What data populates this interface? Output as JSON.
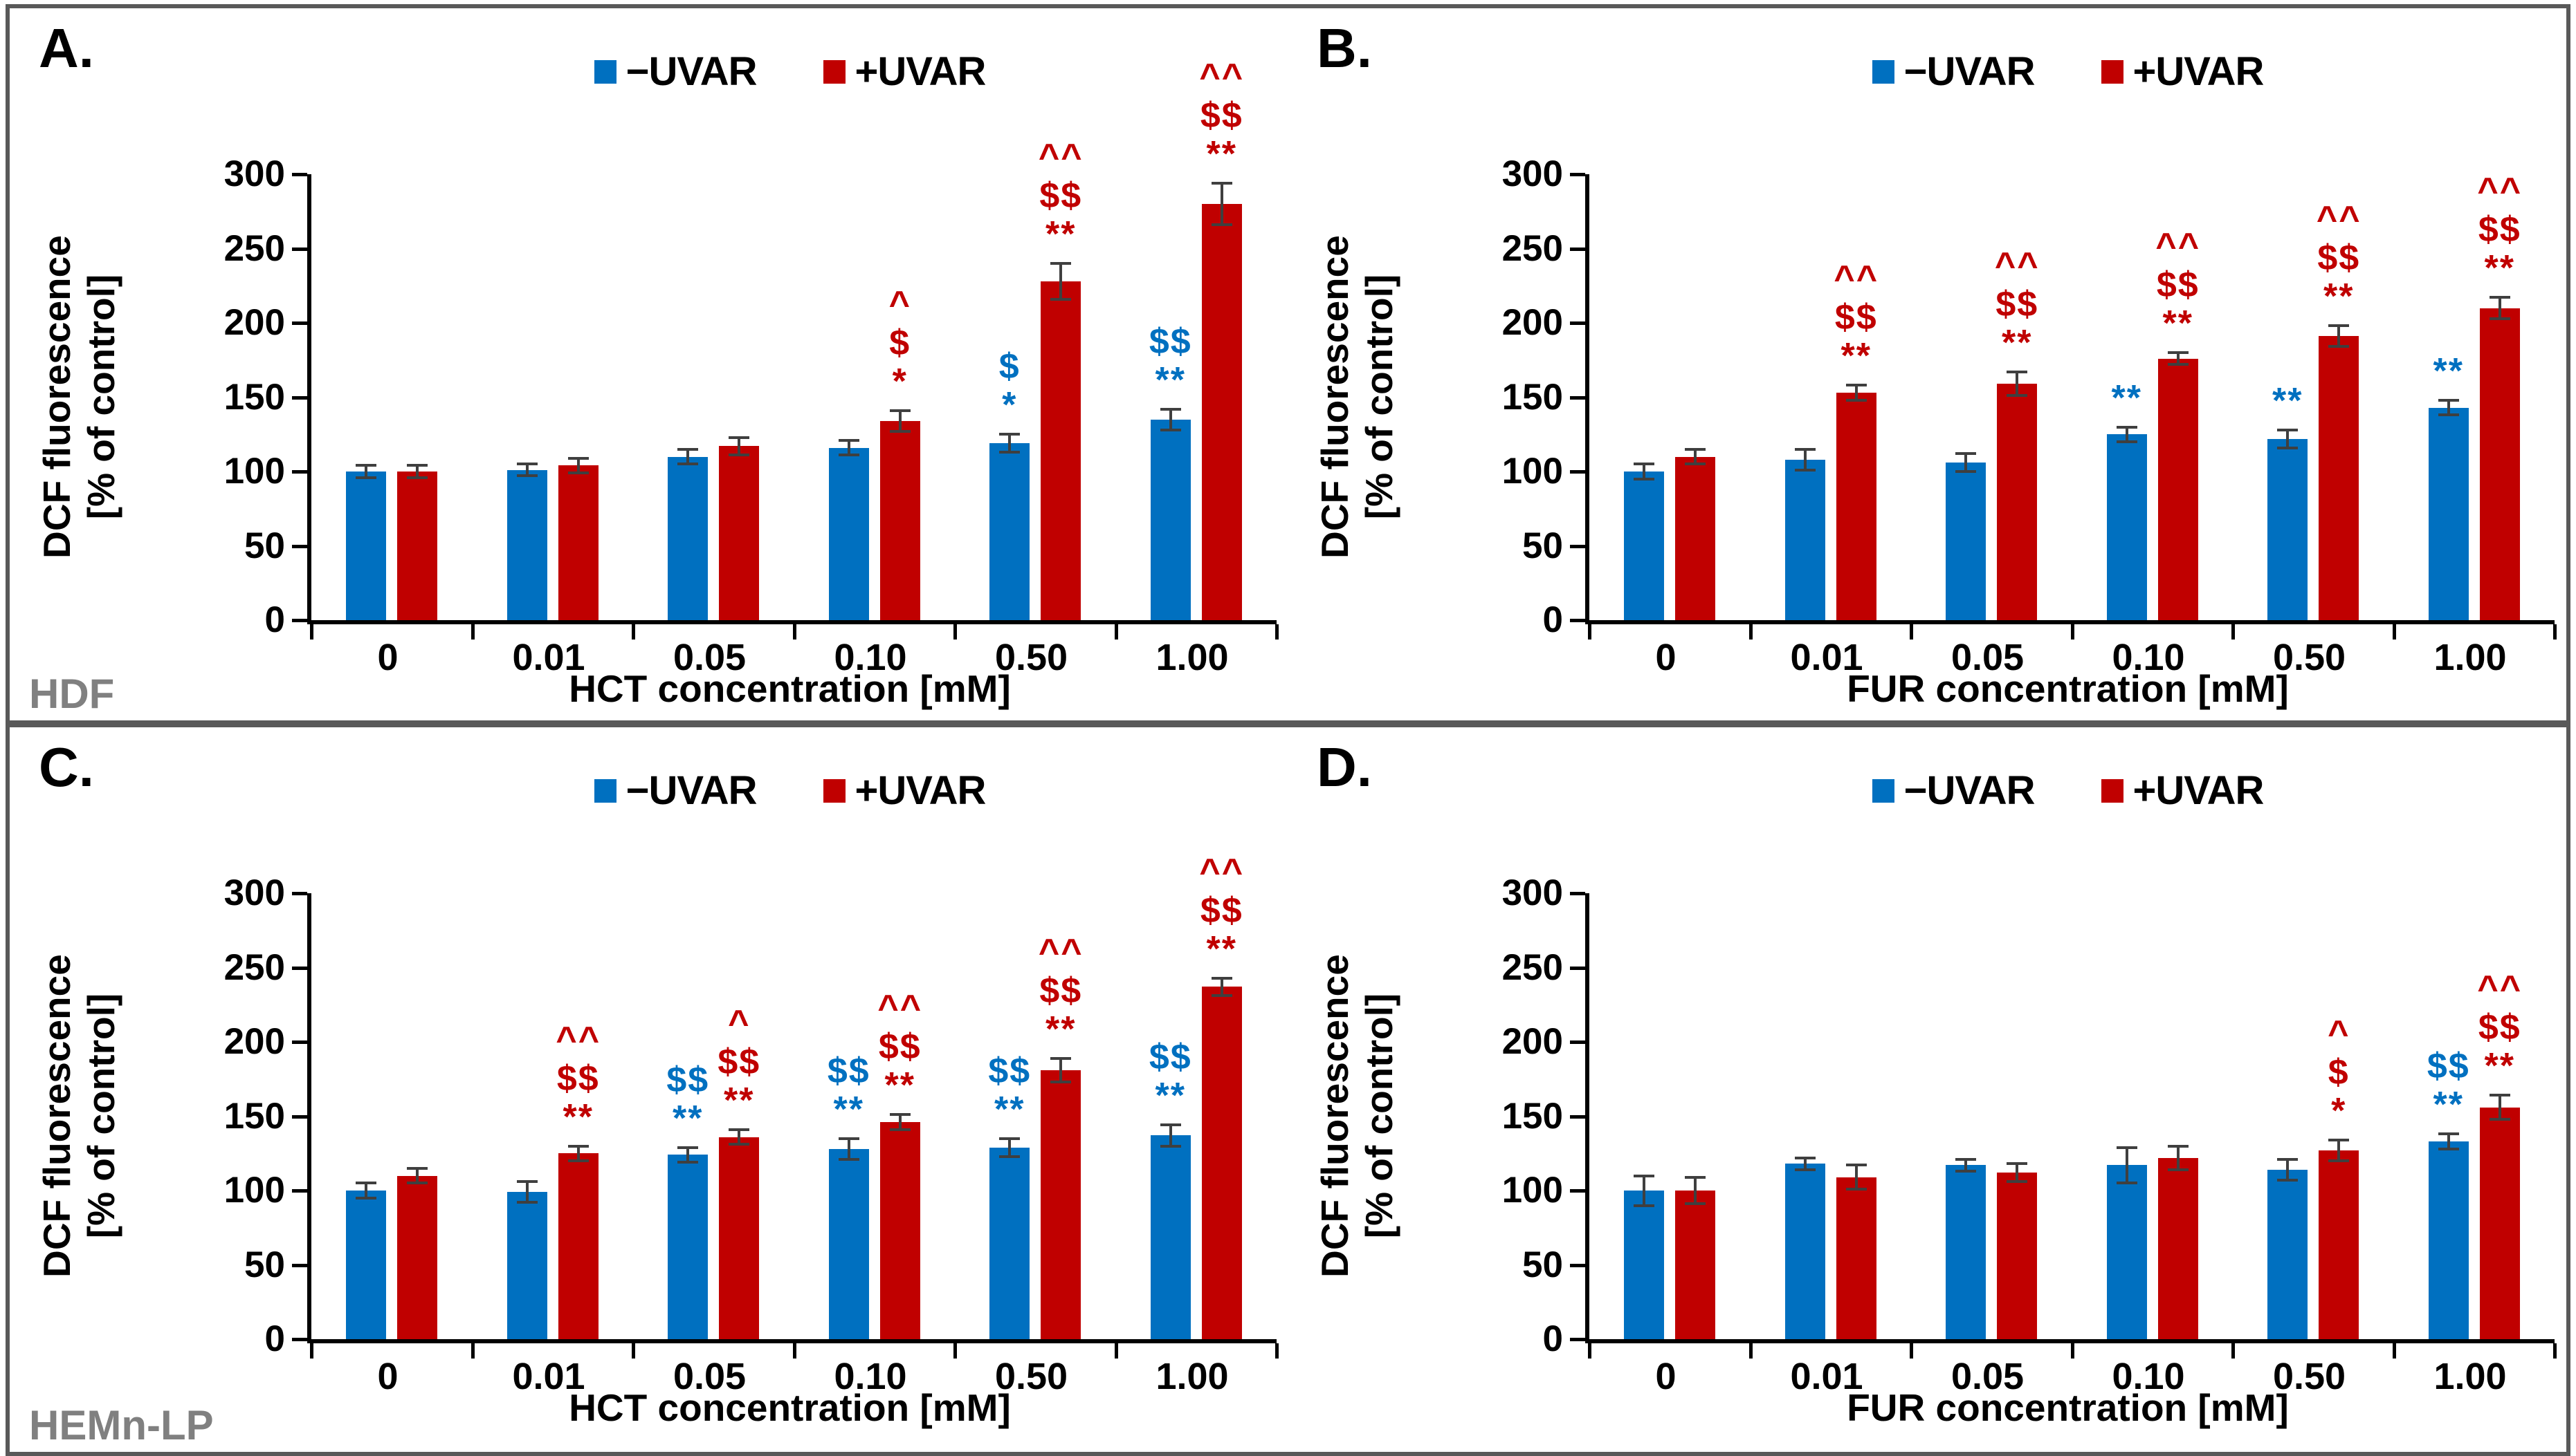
{
  "figure": {
    "legend": [
      {
        "name": "−UVAR",
        "color": "#0070C0"
      },
      {
        "name": "+UVAR",
        "color": "#C00000"
      }
    ],
    "colors": {
      "bar_blue": "#0070C0",
      "bar_red": "#C00000",
      "annotation_blue": "#0070C0",
      "annotation_red": "#C00000",
      "error_bar": "#3F3F3F",
      "box_border": "#595959",
      "axis": "#000000",
      "cell_label": "#808080"
    },
    "y_axis": {
      "label_lines": [
        "DCF fluorescence",
        "[% of control]"
      ],
      "ticks": [
        0,
        50,
        100,
        150,
        200,
        250,
        300
      ],
      "max": 300
    },
    "row_labels": [
      "HDF",
      "HEMn-LP"
    ]
  },
  "chart_data": [
    {
      "type": "bar",
      "panel": "A.",
      "cell_line": "HDF",
      "xlabel": "HCT concentration [mM]",
      "ylabel": "DCF fluorescence [% of control]",
      "ylim": [
        0,
        300
      ],
      "categories": [
        "0",
        "0.01",
        "0.05",
        "0.10",
        "0.50",
        "1.00"
      ],
      "series": [
        {
          "name": "−UVAR",
          "color": "#0070C0",
          "values": [
            100,
            101,
            110,
            116,
            119,
            135
          ],
          "errors": [
            4,
            4,
            5,
            5,
            6,
            7
          ],
          "annotations": [
            [],
            [],
            [],
            [],
            [
              "$",
              "*"
            ],
            [
              "$$",
              "**"
            ]
          ]
        },
        {
          "name": "+UVAR",
          "color": "#C00000",
          "values": [
            100,
            104,
            117,
            134,
            228,
            280
          ],
          "errors": [
            4,
            5,
            6,
            7,
            12,
            14
          ],
          "annotations": [
            [],
            [],
            [],
            [
              "^",
              "$",
              "*"
            ],
            [
              "^^",
              "$$",
              "**"
            ],
            [
              "^^",
              "$$",
              "**"
            ]
          ]
        }
      ]
    },
    {
      "type": "bar",
      "panel": "B.",
      "cell_line": "HDF",
      "xlabel": "FUR concentration [mM]",
      "ylabel": "DCF fluorescence [% of control]",
      "ylim": [
        0,
        300
      ],
      "categories": [
        "0",
        "0.01",
        "0.05",
        "0.10",
        "0.50",
        "1.00"
      ],
      "series": [
        {
          "name": "−UVAR",
          "color": "#0070C0",
          "values": [
            100,
            108,
            106,
            125,
            122,
            143
          ],
          "errors": [
            5,
            7,
            6,
            5,
            6,
            5
          ],
          "annotations": [
            [],
            [],
            [],
            [
              "**"
            ],
            [
              "**"
            ],
            [
              "**"
            ]
          ]
        },
        {
          "name": "+UVAR",
          "color": "#C00000",
          "values": [
            110,
            153,
            159,
            176,
            191,
            210
          ],
          "errors": [
            5,
            5,
            8,
            4,
            7,
            7
          ],
          "annotations": [
            [],
            [
              "^^",
              "$$",
              "**"
            ],
            [
              "^^",
              "$$",
              "**"
            ],
            [
              "^^",
              "$$",
              "**"
            ],
            [
              "^^",
              "$$",
              "**"
            ],
            [
              "^^",
              "$$",
              "**"
            ]
          ]
        }
      ]
    },
    {
      "type": "bar",
      "panel": "C.",
      "cell_line": "HEMn-LP",
      "xlabel": "HCT concentration [mM]",
      "ylabel": "DCF fluorescence [% of control]",
      "ylim": [
        0,
        300
      ],
      "categories": [
        "0",
        "0.01",
        "0.05",
        "0.10",
        "0.50",
        "1.00"
      ],
      "series": [
        {
          "name": "−UVAR",
          "color": "#0070C0",
          "values": [
            100,
            99,
            124,
            128,
            129,
            137
          ],
          "errors": [
            5,
            7,
            5,
            7,
            6,
            7
          ],
          "annotations": [
            [],
            [],
            [
              "$$",
              "**"
            ],
            [
              "$$",
              "**"
            ],
            [
              "$$",
              "**"
            ],
            [
              "$$",
              "**"
            ]
          ]
        },
        {
          "name": "+UVAR",
          "color": "#C00000",
          "values": [
            110,
            125,
            136,
            146,
            181,
            237
          ],
          "errors": [
            5,
            5,
            5,
            5,
            8,
            6
          ],
          "annotations": [
            [],
            [
              "^^",
              "$$",
              "**"
            ],
            [
              "^",
              "$$",
              "**"
            ],
            [
              "^^",
              "$$",
              "**"
            ],
            [
              "^^",
              "$$",
              "**"
            ],
            [
              "^^",
              "$$",
              "**"
            ]
          ]
        }
      ]
    },
    {
      "type": "bar",
      "panel": "D.",
      "cell_line": "HEMn-LP",
      "xlabel": "FUR concentration [mM]",
      "ylabel": "DCF fluorescence [% of control]",
      "ylim": [
        0,
        300
      ],
      "categories": [
        "0",
        "0.01",
        "0.05",
        "0.10",
        "0.50",
        "1.00"
      ],
      "series": [
        {
          "name": "−UVAR",
          "color": "#0070C0",
          "values": [
            100,
            118,
            117,
            117,
            114,
            133
          ],
          "errors": [
            10,
            4,
            4,
            12,
            7,
            5
          ],
          "annotations": [
            [],
            [],
            [],
            [],
            [],
            [
              "$$",
              "**"
            ]
          ]
        },
        {
          "name": "+UVAR",
          "color": "#C00000",
          "values": [
            100,
            109,
            112,
            122,
            127,
            156
          ],
          "errors": [
            9,
            8,
            6,
            8,
            7,
            8
          ],
          "annotations": [
            [],
            [],
            [],
            [],
            [
              "^",
              "$",
              "*"
            ],
            [
              "^^",
              "$$",
              "**"
            ]
          ]
        }
      ]
    }
  ]
}
